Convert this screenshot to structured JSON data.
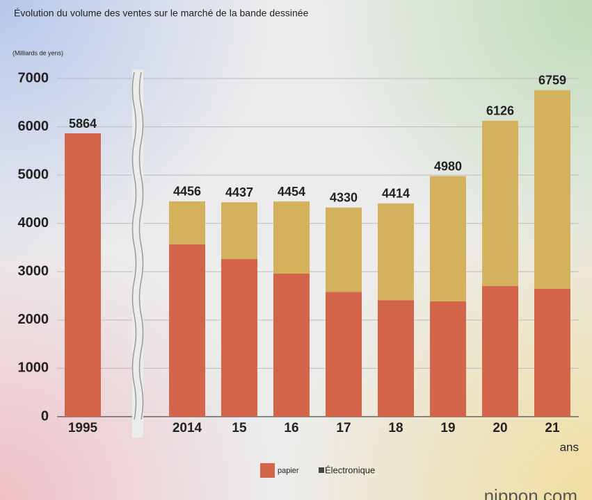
{
  "chart_data": {
    "type": "bar",
    "stacked": true,
    "title": "Évolution du volume des ventes sur le marché de la bande dessinée",
    "y_label": "(Milliards de yens)",
    "x_label": "ans",
    "categories": [
      "1995",
      "2014",
      "15",
      "16",
      "17",
      "18",
      "19",
      "20",
      "21"
    ],
    "series": [
      {
        "name": "papier",
        "color": "#d2654a",
        "values": [
          5864,
          3569,
          3266,
          2963,
          2583,
          2412,
          2387,
          2706,
          2645
        ]
      },
      {
        "name": "Électronique",
        "color": "#d4b15c",
        "values": [
          null,
          887,
          1171,
          1491,
          1747,
          2002,
          2593,
          3420,
          4114
        ]
      }
    ],
    "totals": [
      5864,
      4456,
      4437,
      4454,
      4330,
      4414,
      4980,
      6126,
      6759
    ],
    "ylim": [
      0,
      7000
    ],
    "yticks": [
      0,
      1000,
      2000,
      3000,
      4000,
      5000,
      6000,
      7000
    ],
    "grid": true,
    "source": "nippon.com"
  }
}
